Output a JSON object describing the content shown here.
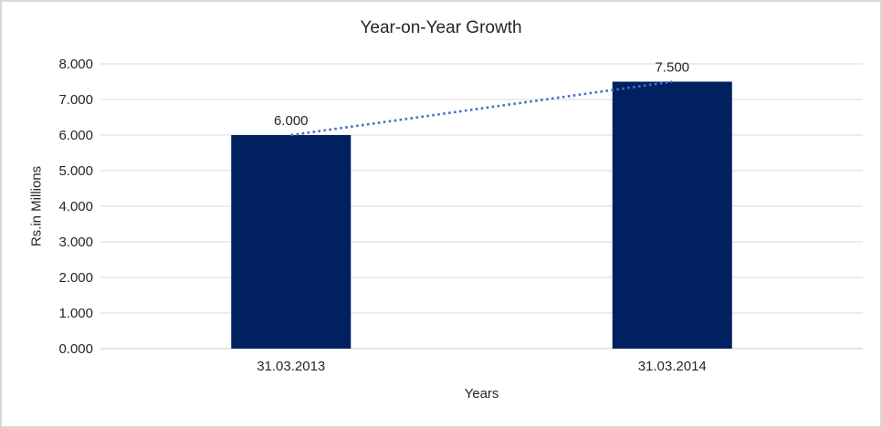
{
  "window": {
    "background_color": "#ffffff",
    "border_color": "#d7d7d7"
  },
  "chart_data": {
    "type": "bar",
    "title": "Year-on-Year Growth",
    "xlabel": "Years",
    "ylabel": "Rs.in Millions",
    "categories": [
      "31.03.2013",
      "31.03.2014"
    ],
    "values": [
      6.0,
      7.5
    ],
    "data_labels": [
      "6.000",
      "7.500"
    ],
    "y_tick_labels": [
      "0.000",
      "1.000",
      "2.000",
      "3.000",
      "4.000",
      "5.000",
      "6.000",
      "7.000",
      "8.000"
    ],
    "ylim": [
      0,
      8
    ],
    "y_tick_step": 1,
    "grid": true,
    "legend_position": "none",
    "bar_color": "#002060",
    "trendline": {
      "style": "dotted",
      "from_value": 6.0,
      "to_value": 7.5,
      "color": "#4472c4"
    },
    "gridline_color": "#d9d9d9",
    "axis_line_color": "#c9c9c9",
    "text_color": "#262626"
  }
}
